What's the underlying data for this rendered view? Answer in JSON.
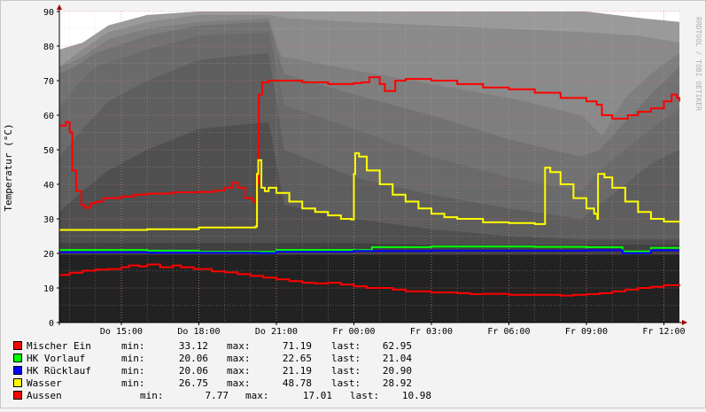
{
  "chart_data": {
    "type": "line",
    "ylabel": "Temperatur (°C)",
    "watermark": "RRDTOOL / TOBI OETIKER",
    "ylim": [
      0,
      90
    ],
    "xlim_hours": [
      12.6,
      36.6
    ],
    "x_ticks": [
      {
        "label": "Do 15:00",
        "h": 15
      },
      {
        "label": "Do 18:00",
        "h": 18
      },
      {
        "label": "Do 21:00",
        "h": 21
      },
      {
        "label": "Fr 00:00",
        "h": 24
      },
      {
        "label": "Fr 03:00",
        "h": 27
      },
      {
        "label": "Fr 06:00",
        "h": 30
      },
      {
        "label": "Fr 09:00",
        "h": 33
      },
      {
        "label": "Fr 12:00",
        "h": 36
      }
    ],
    "y_ticks": [
      0,
      10,
      20,
      30,
      40,
      50,
      60,
      70,
      80,
      90
    ],
    "colors": {
      "background": "#f3f3f3",
      "plot_dark": "#222222",
      "grid_major": "#e07070",
      "axis": "#000000",
      "arrow": "#a00000"
    },
    "background_layers": [
      {
        "color": "#9a9a9a",
        "points": [
          [
            12.6,
            79
          ],
          [
            13.5,
            81
          ],
          [
            14.5,
            86
          ],
          [
            16,
            89
          ],
          [
            18,
            90
          ],
          [
            21,
            90
          ],
          [
            24,
            90
          ],
          [
            27,
            90
          ],
          [
            30,
            90
          ],
          [
            33,
            90
          ],
          [
            35.2,
            88
          ],
          [
            36.6,
            87
          ]
        ]
      },
      {
        "color": "#8a8a8a",
        "points": [
          [
            12.6,
            74
          ],
          [
            13.5,
            79
          ],
          [
            14.5,
            84
          ],
          [
            16,
            87
          ],
          [
            18,
            89
          ],
          [
            20.7,
            89
          ],
          [
            21.5,
            88
          ],
          [
            24,
            87
          ],
          [
            27,
            86
          ],
          [
            30,
            85
          ],
          [
            33,
            84
          ],
          [
            35,
            83
          ],
          [
            36.6,
            81
          ]
        ]
      },
      {
        "color": "#7e7e7e",
        "points": [
          [
            12.6,
            74
          ],
          [
            13.3,
            76
          ],
          [
            14.5,
            82
          ],
          [
            16,
            85
          ],
          [
            18,
            87
          ],
          [
            20.7,
            88
          ],
          [
            21.2,
            77
          ],
          [
            24,
            73
          ],
          [
            27,
            69
          ],
          [
            30,
            65
          ],
          [
            32.8,
            60
          ],
          [
            33.6,
            54
          ],
          [
            34.5,
            65
          ],
          [
            35.5,
            72
          ],
          [
            36.6,
            78
          ]
        ]
      },
      {
        "color": "#727272",
        "points": [
          [
            12.6,
            72
          ],
          [
            13.2,
            74
          ],
          [
            14,
            78
          ],
          [
            16,
            83
          ],
          [
            18,
            86
          ],
          [
            20.7,
            87
          ],
          [
            21.3,
            72
          ],
          [
            24,
            66
          ],
          [
            27,
            60
          ],
          [
            30,
            53
          ],
          [
            32.8,
            48
          ],
          [
            33.5,
            50
          ],
          [
            34.5,
            58
          ],
          [
            35.5,
            66
          ],
          [
            36.6,
            74
          ]
        ]
      },
      {
        "color": "#6a6a6a",
        "points": [
          [
            12.6,
            62
          ],
          [
            13.2,
            68
          ],
          [
            14,
            74
          ],
          [
            16,
            79
          ],
          [
            18,
            83
          ],
          [
            20.7,
            84
          ],
          [
            21.3,
            63
          ],
          [
            24,
            56
          ],
          [
            27,
            48
          ],
          [
            30,
            42
          ],
          [
            32.8,
            38
          ],
          [
            33.5,
            44
          ],
          [
            34.5,
            50
          ],
          [
            35.5,
            56
          ],
          [
            36.6,
            62
          ]
        ]
      },
      {
        "color": "#5e5e5e",
        "points": [
          [
            12.6,
            48
          ],
          [
            13.5,
            56
          ],
          [
            14.5,
            64
          ],
          [
            16,
            70
          ],
          [
            18,
            76
          ],
          [
            20.7,
            78
          ],
          [
            21.3,
            50
          ],
          [
            24,
            42
          ],
          [
            27,
            37
          ],
          [
            30,
            33
          ],
          [
            32.8,
            30
          ],
          [
            33.5,
            34
          ],
          [
            34.5,
            40
          ],
          [
            35.5,
            46
          ],
          [
            36.6,
            50
          ]
        ]
      },
      {
        "color": "#4f4f4f",
        "points": [
          [
            12.6,
            32
          ],
          [
            13.5,
            38
          ],
          [
            14.5,
            44
          ],
          [
            16,
            50
          ],
          [
            18,
            56
          ],
          [
            20.7,
            58
          ],
          [
            21.3,
            34
          ],
          [
            24,
            30
          ],
          [
            27,
            27
          ],
          [
            30,
            25
          ],
          [
            33,
            24
          ],
          [
            36.6,
            24
          ]
        ]
      },
      {
        "color": "#404040",
        "points": [
          [
            12.6,
            23
          ],
          [
            14,
            23
          ],
          [
            18,
            23
          ],
          [
            21,
            23
          ],
          [
            24,
            23
          ],
          [
            27,
            22.5
          ],
          [
            30,
            22.5
          ],
          [
            33,
            22.5
          ],
          [
            36.6,
            22.5
          ]
        ]
      }
    ],
    "series": [
      {
        "name": "Mischer Ein",
        "color": "#ff0000",
        "stats": {
          "min_label": "min:",
          "min": "33.12",
          "max_label": "max:",
          "max": "71.19",
          "last_label": "last:",
          "last": "62.95"
        },
        "points": [
          [
            12.6,
            57
          ],
          [
            12.85,
            58
          ],
          [
            13.0,
            55
          ],
          [
            13.1,
            44
          ],
          [
            13.25,
            38
          ],
          [
            13.45,
            34
          ],
          [
            13.6,
            33.2
          ],
          [
            13.8,
            34.5
          ],
          [
            14.0,
            35
          ],
          [
            14.3,
            36
          ],
          [
            15.0,
            36.5
          ],
          [
            15.5,
            37
          ],
          [
            16.0,
            37.3
          ],
          [
            17.0,
            37.7
          ],
          [
            18.0,
            37.8
          ],
          [
            18.6,
            38.2
          ],
          [
            19.0,
            39
          ],
          [
            19.3,
            40.5
          ],
          [
            19.5,
            39
          ],
          [
            19.8,
            36
          ],
          [
            20.1,
            35
          ],
          [
            20.25,
            40
          ],
          [
            20.32,
            66
          ],
          [
            20.45,
            69.5
          ],
          [
            20.7,
            70
          ],
          [
            21,
            70
          ],
          [
            22,
            69.5
          ],
          [
            23,
            69
          ],
          [
            24,
            69.3
          ],
          [
            24.3,
            69.5
          ],
          [
            24.6,
            71
          ],
          [
            24.8,
            71
          ],
          [
            25,
            69
          ],
          [
            25.2,
            67
          ],
          [
            25.4,
            67
          ],
          [
            25.6,
            70
          ],
          [
            26,
            70.5
          ],
          [
            27,
            70
          ],
          [
            28,
            69
          ],
          [
            29,
            68
          ],
          [
            30,
            67.5
          ],
          [
            31,
            66.5
          ],
          [
            32,
            65
          ],
          [
            33,
            64
          ],
          [
            33.4,
            63
          ],
          [
            33.6,
            60
          ],
          [
            34,
            59
          ],
          [
            34.3,
            59
          ],
          [
            34.6,
            60
          ],
          [
            35,
            61
          ],
          [
            35.5,
            62
          ],
          [
            36,
            64
          ],
          [
            36.3,
            66
          ],
          [
            36.5,
            65
          ],
          [
            36.6,
            64
          ]
        ]
      },
      {
        "name": "HK Vorlauf",
        "color": "#00ff00",
        "stats": {
          "min_label": "min:",
          "min": "20.06",
          "max_label": "max:",
          "max": "22.65",
          "last_label": "last:",
          "last": "21.04"
        },
        "points": [
          [
            12.6,
            21
          ],
          [
            14,
            21
          ],
          [
            16,
            20.8
          ],
          [
            18,
            20.5
          ],
          [
            20.3,
            20.5
          ],
          [
            21,
            21
          ],
          [
            23,
            21
          ],
          [
            24.6,
            21
          ],
          [
            24.7,
            21.8
          ],
          [
            26,
            21.8
          ],
          [
            27,
            22
          ],
          [
            29,
            22
          ],
          [
            31,
            21.9
          ],
          [
            33,
            21.8
          ],
          [
            34.3,
            21.8
          ],
          [
            34.4,
            20.6
          ],
          [
            35.4,
            20.6
          ],
          [
            35.5,
            21.6
          ],
          [
            36.6,
            21.6
          ]
        ]
      },
      {
        "name": "HK Rücklauf",
        "color": "#0000ff",
        "stats": {
          "min_label": "min:",
          "min": "20.06",
          "max_label": "max:",
          "max": "21.19",
          "last_label": "last:",
          "last": "20.90"
        },
        "points": [
          [
            12.6,
            20.3
          ],
          [
            14,
            20.3
          ],
          [
            16,
            20.2
          ],
          [
            18,
            20.2
          ],
          [
            20.3,
            20.1
          ],
          [
            21,
            20.5
          ],
          [
            24,
            20.7
          ],
          [
            27,
            20.8
          ],
          [
            30,
            20.8
          ],
          [
            33,
            20.9
          ],
          [
            34.3,
            20.9
          ],
          [
            34.4,
            20.1
          ],
          [
            35.4,
            20.1
          ],
          [
            35.5,
            20.9
          ],
          [
            36.6,
            20.9
          ]
        ]
      },
      {
        "name": "Wasser",
        "color": "#ffff00",
        "stats": {
          "min_label": "min:",
          "min": "26.75",
          "max_label": "max:",
          "max": "48.78",
          "last_label": "last:",
          "last": "28.92"
        },
        "points": [
          [
            12.6,
            26.8
          ],
          [
            14,
            26.8
          ],
          [
            16,
            27
          ],
          [
            18,
            27.5
          ],
          [
            20.2,
            27.8
          ],
          [
            20.25,
            43
          ],
          [
            20.3,
            47
          ],
          [
            20.42,
            39
          ],
          [
            20.55,
            38
          ],
          [
            20.7,
            39
          ],
          [
            21,
            37.5
          ],
          [
            21.5,
            35
          ],
          [
            22,
            33
          ],
          [
            22.5,
            32
          ],
          [
            23,
            31
          ],
          [
            23.5,
            30
          ],
          [
            23.9,
            29.8
          ],
          [
            24.0,
            43
          ],
          [
            24.05,
            49
          ],
          [
            24.2,
            48
          ],
          [
            24.5,
            44
          ],
          [
            25,
            40
          ],
          [
            25.5,
            37
          ],
          [
            26,
            35
          ],
          [
            26.5,
            33
          ],
          [
            27,
            31.5
          ],
          [
            27.5,
            30.5
          ],
          [
            28,
            30
          ],
          [
            29,
            29
          ],
          [
            30,
            28.8
          ],
          [
            31,
            28.5
          ],
          [
            31.35,
            28.5
          ],
          [
            31.4,
            44.8
          ],
          [
            31.6,
            43.5
          ],
          [
            32,
            40
          ],
          [
            32.5,
            36
          ],
          [
            33,
            33
          ],
          [
            33.3,
            31.5
          ],
          [
            33.42,
            30
          ],
          [
            33.45,
            43
          ],
          [
            33.7,
            42
          ],
          [
            34,
            39
          ],
          [
            34.5,
            35
          ],
          [
            35,
            32
          ],
          [
            35.5,
            30
          ],
          [
            36,
            29.2
          ],
          [
            36.6,
            28.9
          ]
        ]
      },
      {
        "name": "Aussen",
        "color": "#ff0000",
        "stats": {
          "min_label": "min:",
          "min": "7.77",
          "max_label": "max:",
          "max": "17.01",
          "last_label": "last:",
          "last": "10.98"
        },
        "points": [
          [
            12.6,
            13.8
          ],
          [
            13,
            14.4
          ],
          [
            13.5,
            15
          ],
          [
            14,
            15.3
          ],
          [
            14.5,
            15.5
          ],
          [
            15,
            16
          ],
          [
            15.3,
            16.5
          ],
          [
            15.7,
            16.2
          ],
          [
            16,
            16.8
          ],
          [
            16.5,
            16
          ],
          [
            17,
            16.5
          ],
          [
            17.3,
            16
          ],
          [
            17.8,
            15.5
          ],
          [
            18.5,
            14.8
          ],
          [
            19,
            14.5
          ],
          [
            19.5,
            14
          ],
          [
            20,
            13.5
          ],
          [
            20.5,
            13
          ],
          [
            21,
            12.5
          ],
          [
            21.5,
            12
          ],
          [
            22,
            11.5
          ],
          [
            22.5,
            11.3
          ],
          [
            23,
            11.5
          ],
          [
            23.5,
            11
          ],
          [
            24,
            10.5
          ],
          [
            24.5,
            10
          ],
          [
            25,
            10
          ],
          [
            25.5,
            9.5
          ],
          [
            26,
            9
          ],
          [
            27,
            8.7
          ],
          [
            28,
            8.5
          ],
          [
            28.5,
            8.2
          ],
          [
            29,
            8.3
          ],
          [
            30,
            8
          ],
          [
            31,
            8
          ],
          [
            32,
            7.8
          ],
          [
            32.5,
            8
          ],
          [
            33,
            8.2
          ],
          [
            33.5,
            8.5
          ],
          [
            34,
            9
          ],
          [
            34.5,
            9.5
          ],
          [
            35,
            10
          ],
          [
            35.5,
            10.3
          ],
          [
            36,
            10.8
          ],
          [
            36.6,
            11
          ]
        ]
      }
    ]
  }
}
